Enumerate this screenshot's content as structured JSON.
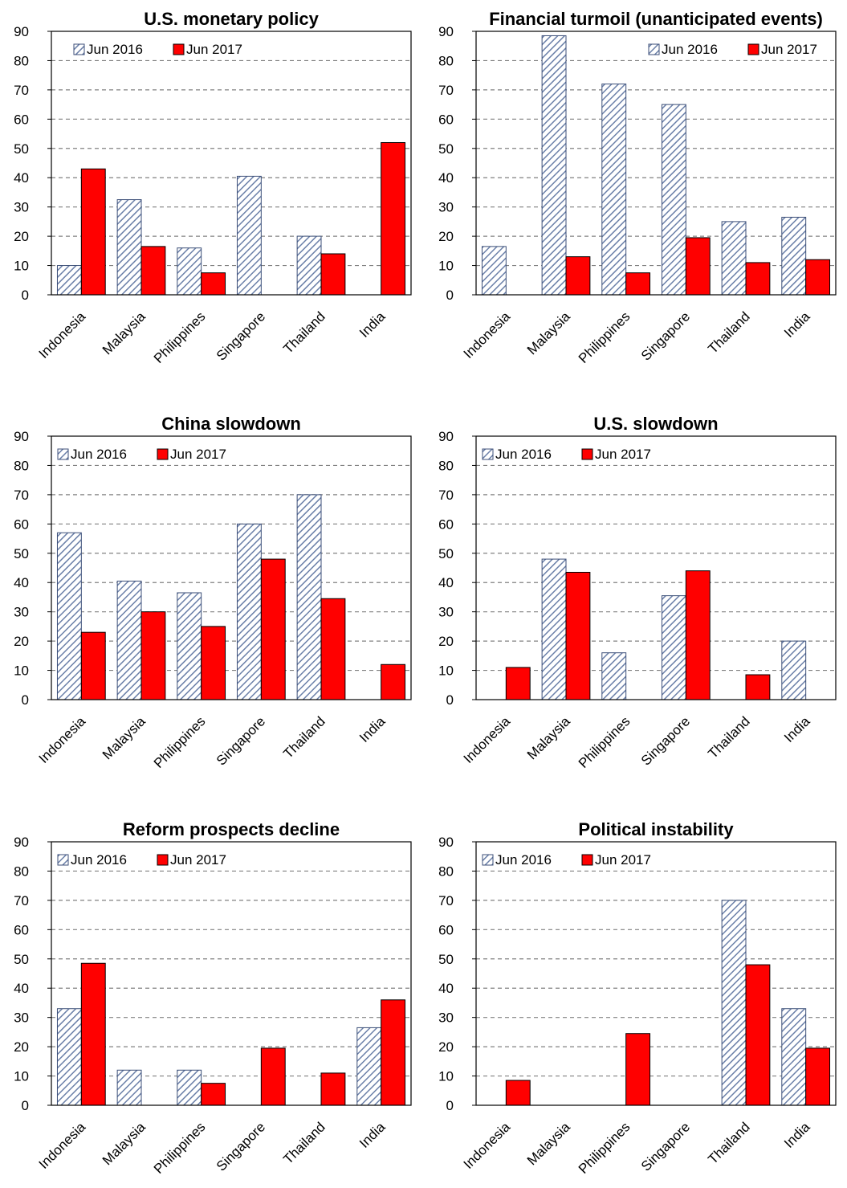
{
  "colors": {
    "jun2016_fill": "#ffffff",
    "jun2016_hatch": "#6a7fa8",
    "jun2016_edge": "#3c4f78",
    "jun2017_fill": "#ff0000",
    "jun2017_edge": "#000000",
    "grid": "#808080"
  },
  "chart_data": [
    {
      "type": "bar",
      "title": "U.S. monetary policy",
      "categories": [
        "Indonesia",
        "Malaysia",
        "Philippines",
        "Singapore",
        "Thailand",
        "India"
      ],
      "series": [
        {
          "name": "Jun 2016",
          "values": [
            10,
            32.5,
            16,
            40.5,
            20,
            0
          ]
        },
        {
          "name": "Jun 2017",
          "values": [
            43,
            16.5,
            7.5,
            0,
            14,
            52
          ]
        }
      ],
      "ylim": [
        0,
        90
      ],
      "yticks": [
        "0",
        "10",
        "20",
        "30",
        "40",
        "50",
        "60",
        "70",
        "80",
        "90"
      ],
      "grid": true,
      "legend": "top-left"
    },
    {
      "type": "bar",
      "title": "Financial turmoil (unanticipated events)",
      "categories": [
        "Indonesia",
        "Malaysia",
        "Philippines",
        "Singapore",
        "Thailand",
        "India"
      ],
      "series": [
        {
          "name": "Jun 2016",
          "values": [
            16.5,
            88.5,
            72,
            65,
            25,
            26.5
          ]
        },
        {
          "name": "Jun 2017",
          "values": [
            0,
            13,
            7.5,
            19.5,
            11,
            12
          ]
        }
      ],
      "ylim": [
        0,
        90
      ],
      "yticks": [
        "0",
        "10",
        "20",
        "30",
        "40",
        "50",
        "60",
        "70",
        "80",
        "90"
      ],
      "grid": true,
      "legend": "top-right"
    },
    {
      "type": "bar",
      "title": "China slowdown",
      "categories": [
        "Indonesia",
        "Malaysia",
        "Philippines",
        "Singapore",
        "Thailand",
        "India"
      ],
      "series": [
        {
          "name": "Jun 2016",
          "values": [
            57,
            40.5,
            36.5,
            60,
            70,
            0
          ]
        },
        {
          "name": "Jun 2017",
          "values": [
            23,
            30,
            25,
            48,
            34.5,
            12
          ]
        }
      ],
      "ylim": [
        0,
        90
      ],
      "yticks": [
        "0",
        "10",
        "20",
        "30",
        "40",
        "50",
        "60",
        "70",
        "80",
        "90"
      ],
      "grid": true,
      "legend": "top-left"
    },
    {
      "type": "bar",
      "title": "U.S. slowdown",
      "categories": [
        "Indonesia",
        "Malaysia",
        "Philippines",
        "Singapore",
        "Thailand",
        "India"
      ],
      "series": [
        {
          "name": "Jun 2016",
          "values": [
            0,
            48,
            16,
            35.5,
            0,
            20
          ]
        },
        {
          "name": "Jun 2017",
          "values": [
            11,
            43.5,
            0,
            44,
            8.5,
            0
          ]
        }
      ],
      "ylim": [
        0,
        90
      ],
      "yticks": [
        "0",
        "10",
        "20",
        "30",
        "40",
        "50",
        "60",
        "70",
        "80",
        "90"
      ],
      "grid": true,
      "legend": "top-left"
    },
    {
      "type": "bar",
      "title": "Reform prospects decline",
      "categories": [
        "Indonesia",
        "Malaysia",
        "Philippines",
        "Singapore",
        "Thailand",
        "India"
      ],
      "series": [
        {
          "name": "Jun 2016",
          "values": [
            33,
            12,
            12,
            0,
            0,
            26.5
          ]
        },
        {
          "name": "Jun 2017",
          "values": [
            48.5,
            0,
            7.5,
            19.5,
            11,
            36
          ]
        }
      ],
      "ylim": [
        0,
        90
      ],
      "yticks": [
        "0",
        "10",
        "20",
        "30",
        "40",
        "50",
        "60",
        "70",
        "80",
        "90"
      ],
      "grid": true,
      "legend": "top-left"
    },
    {
      "type": "bar",
      "title": "Political instability",
      "categories": [
        "Indonesia",
        "Malaysia",
        "Philippines",
        "Singapore",
        "Thailand",
        "India"
      ],
      "series": [
        {
          "name": "Jun 2016",
          "values": [
            0,
            0,
            0,
            0,
            70,
            33
          ]
        },
        {
          "name": "Jun 2017",
          "values": [
            8.5,
            0,
            24.5,
            0,
            48,
            19.5
          ]
        }
      ],
      "ylim": [
        0,
        90
      ],
      "yticks": [
        "0",
        "10",
        "20",
        "30",
        "40",
        "50",
        "60",
        "70",
        "80",
        "90"
      ],
      "grid": true,
      "legend": "top-left"
    }
  ]
}
